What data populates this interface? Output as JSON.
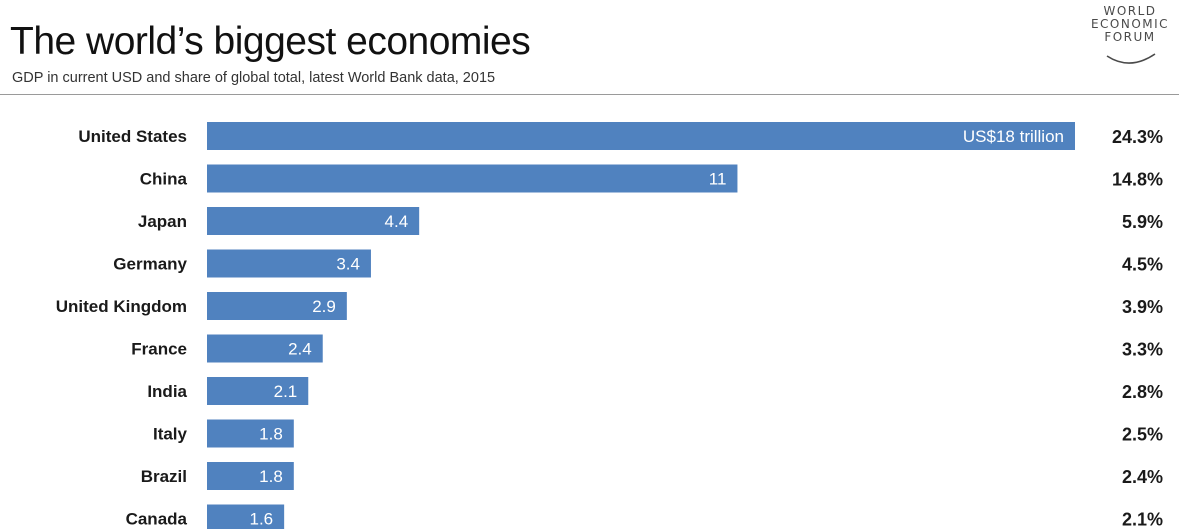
{
  "header": {
    "title": "The world’s biggest economies",
    "subtitle": "GDP in current USD and share of global total, latest World Bank data, 2015"
  },
  "logo": {
    "lines": [
      "WORLD",
      "ECONOMIC",
      "FORUM"
    ],
    "color": "#4a4a4a"
  },
  "chart_data": {
    "type": "bar",
    "orientation": "horizontal",
    "bar_color": "#5082bf",
    "categories": [
      "United States",
      "China",
      "Japan",
      "Germany",
      "United Kingdom",
      "France",
      "India",
      "Italy",
      "Brazil",
      "Canada"
    ],
    "series": [
      {
        "values": [
          18,
          11,
          4.4,
          3.4,
          2.9,
          2.4,
          2.1,
          1.8,
          1.8,
          1.6
        ]
      }
    ],
    "data_labels": [
      "US$18 trillion",
      "11",
      "4.4",
      "3.4",
      "2.9",
      "2.4",
      "2.1",
      "1.8",
      "1.8",
      "1.6"
    ],
    "shares": [
      "24.3%",
      "14.8%",
      "5.9%",
      "4.5%",
      "3.9%",
      "3.3%",
      "2.8%",
      "2.5%",
      "2.4%",
      "2.1%"
    ],
    "xlim": [
      0,
      18
    ],
    "grid": false,
    "axes_visible": false
  }
}
